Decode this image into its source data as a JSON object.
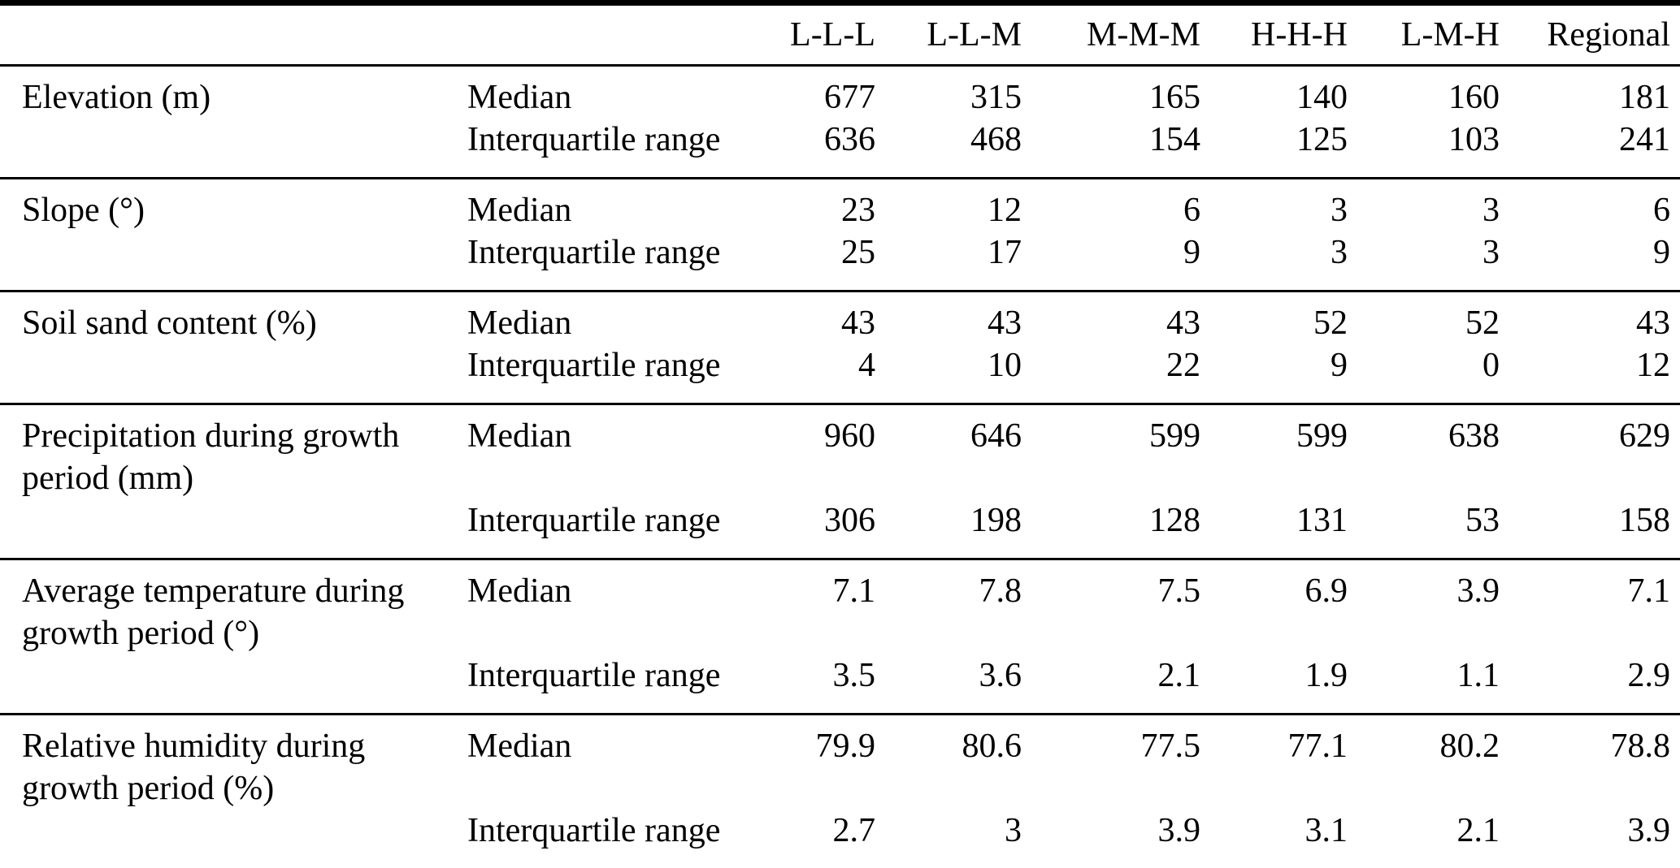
{
  "page": {
    "background": "#ffffff",
    "text_color": "#000000",
    "rule_color": "#000000"
  },
  "table": {
    "column_headers": [
      "L-L-L",
      "L-L-M",
      "M-M-M",
      "H-H-H",
      "L-M-H",
      "Regional"
    ],
    "stat_labels": {
      "median": "Median",
      "iqr": "Interquartile range"
    },
    "groups": [
      {
        "variable": "Elevation (m)",
        "median": [
          "677",
          "315",
          "165",
          "140",
          "160",
          "181"
        ],
        "iqr": [
          "636",
          "468",
          "154",
          "125",
          "103",
          "241"
        ]
      },
      {
        "variable": "Slope (°)",
        "median": [
          "23",
          "12",
          "6",
          "3",
          "3",
          "6"
        ],
        "iqr": [
          "25",
          "17",
          "9",
          "3",
          "3",
          "9"
        ]
      },
      {
        "variable": "Soil sand content (%)",
        "median": [
          "43",
          "43",
          "43",
          "52",
          "52",
          "43"
        ],
        "iqr": [
          "4",
          "10",
          "22",
          "9",
          "0",
          "12"
        ]
      },
      {
        "variable": "Precipitation during growth period (mm)",
        "median": [
          "960",
          "646",
          "599",
          "599",
          "638",
          "629"
        ],
        "iqr": [
          "306",
          "198",
          "128",
          "131",
          "53",
          "158"
        ]
      },
      {
        "variable": "Average temperature during growth period (°)",
        "median": [
          "7.1",
          "7.8",
          "7.5",
          "6.9",
          "3.9",
          "7.1"
        ],
        "iqr": [
          "3.5",
          "3.6",
          "2.1",
          "1.9",
          "1.1",
          "2.9"
        ]
      },
      {
        "variable": "Relative humidity during growth period (%)",
        "median": [
          "79.9",
          "80.6",
          "77.5",
          "77.1",
          "80.2",
          "78.8"
        ],
        "iqr": [
          "2.7",
          "3",
          "3.9",
          "3.1",
          "2.1",
          "3.9"
        ]
      }
    ]
  }
}
